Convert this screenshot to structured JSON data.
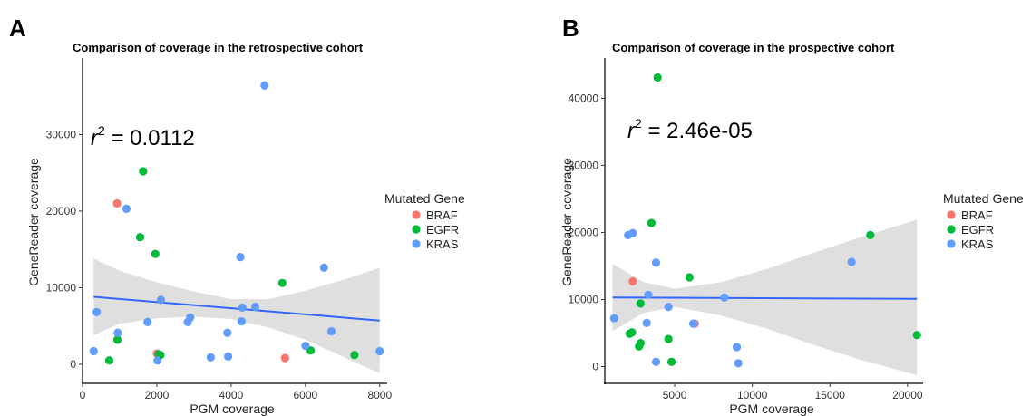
{
  "chart_data": [
    {
      "panel": "A",
      "type": "scatter",
      "title": "Comparison of coverage in the retrospective cohort",
      "xlabel": "PGM coverage",
      "ylabel": "GeneReader coverage",
      "xlim": [
        0,
        8200
      ],
      "ylim": [
        -2500,
        40000
      ],
      "xticks": [
        0,
        2000,
        4000,
        6000,
        8000
      ],
      "yticks": [
        0,
        10000,
        20000,
        30000
      ],
      "xtick_labels": [
        "0",
        "2000",
        "4000",
        "6000",
        "8000"
      ],
      "ytick_labels": [
        "0",
        "10000",
        "20000",
        "30000"
      ],
      "annotation": {
        "r": "r",
        "sup": "2",
        "rest": " = 0.0112"
      },
      "legend_title": "Mutated Gene",
      "regression": {
        "x": [
          300,
          8000
        ],
        "y": [
          8800,
          5700
        ]
      },
      "confidence_band": {
        "x": [
          300,
          1000,
          2000,
          3000,
          4000,
          5000,
          6000,
          7000,
          8000
        ],
        "lower": [
          3800,
          5300,
          6000,
          6200,
          5900,
          4800,
          3200,
          1000,
          -1200
        ],
        "upper": [
          13800,
          12200,
          10700,
          9500,
          8500,
          8500,
          9600,
          11000,
          12600
        ]
      },
      "series": [
        {
          "name": "BRAF",
          "color": "#F8766D",
          "points": [
            [
              930,
              21000
            ],
            [
              2000,
              1400
            ],
            [
              5450,
              800
            ]
          ]
        },
        {
          "name": "EGFR",
          "color": "#00BA38",
          "points": [
            [
              1630,
              25200
            ],
            [
              1550,
              16600
            ],
            [
              1960,
              14400
            ],
            [
              940,
              3200
            ],
            [
              720,
              500
            ],
            [
              2050,
              1300
            ],
            [
              2100,
              1200
            ],
            [
              5380,
              10600
            ],
            [
              6140,
              1800
            ],
            [
              7320,
              1200
            ]
          ]
        },
        {
          "name": "KRAS",
          "color": "#619CFF",
          "points": [
            [
              4900,
              36400
            ],
            [
              1180,
              20300
            ],
            [
              4250,
              14000
            ],
            [
              6500,
              12600
            ],
            [
              2110,
              8400
            ],
            [
              380,
              6800
            ],
            [
              4300,
              7400
            ],
            [
              4650,
              7500
            ],
            [
              1750,
              5500
            ],
            [
              2900,
              6100
            ],
            [
              2830,
              5500
            ],
            [
              4280,
              5600
            ],
            [
              950,
              4100
            ],
            [
              3900,
              4100
            ],
            [
              6000,
              2400
            ],
            [
              6700,
              4300
            ],
            [
              300,
              1700
            ],
            [
              2020,
              500
            ],
            [
              3450,
              900
            ],
            [
              3920,
              1000
            ],
            [
              8000,
              1700
            ]
          ]
        }
      ]
    },
    {
      "panel": "B",
      "type": "scatter",
      "title": "Comparison of coverage in the prospective cohort",
      "xlabel": "PGM coverage",
      "ylabel": "GeneReader coverage",
      "xlim": [
        500,
        21000
      ],
      "ylim": [
        -2500,
        46000
      ],
      "xticks": [
        5000,
        10000,
        15000,
        20000
      ],
      "yticks": [
        0,
        10000,
        20000,
        30000,
        40000
      ],
      "xtick_labels": [
        "5000",
        "10000",
        "15000",
        "20000"
      ],
      "ytick_labels": [
        "0",
        "10000",
        "20000",
        "30000",
        "40000"
      ],
      "annotation": {
        "r": "r",
        "sup": "2",
        "rest": " = 2.46e-05"
      },
      "legend_title": "Mutated Gene",
      "regression": {
        "x": [
          1000,
          20600
        ],
        "y": [
          10300,
          10100
        ]
      },
      "confidence_band": {
        "x": [
          1000,
          3000,
          5000,
          8000,
          11000,
          14000,
          17000,
          20600
        ],
        "lower": [
          5300,
          8000,
          8900,
          7600,
          5600,
          3200,
          1000,
          -1300
        ],
        "upper": [
          15300,
          12600,
          11600,
          12600,
          14600,
          17000,
          19300,
          21900
        ]
      },
      "series": [
        {
          "name": "BRAF",
          "color": "#F8766D",
          "points": [
            [
              2300,
              12700
            ],
            [
              6300,
              6400
            ]
          ]
        },
        {
          "name": "EGFR",
          "color": "#00BA38",
          "points": [
            [
              3900,
              43100
            ],
            [
              3500,
              21400
            ],
            [
              5950,
              13300
            ],
            [
              17600,
              19600
            ],
            [
              2800,
              9400
            ],
            [
              2100,
              4900
            ],
            [
              2250,
              5100
            ],
            [
              2700,
              3000
            ],
            [
              2800,
              3500
            ],
            [
              4600,
              4100
            ],
            [
              4800,
              700
            ],
            [
              20600,
              4700
            ]
          ]
        },
        {
          "name": "KRAS",
          "color": "#619CFF",
          "points": [
            [
              2000,
              19600
            ],
            [
              2300,
              19900
            ],
            [
              3800,
              15500
            ],
            [
              16400,
              15600
            ],
            [
              3300,
              10700
            ],
            [
              8200,
              10300
            ],
            [
              1100,
              7200
            ],
            [
              4600,
              8900
            ],
            [
              3200,
              6500
            ],
            [
              6200,
              6400
            ],
            [
              9000,
              2900
            ],
            [
              3800,
              700
            ],
            [
              9100,
              500
            ]
          ]
        }
      ]
    }
  ]
}
